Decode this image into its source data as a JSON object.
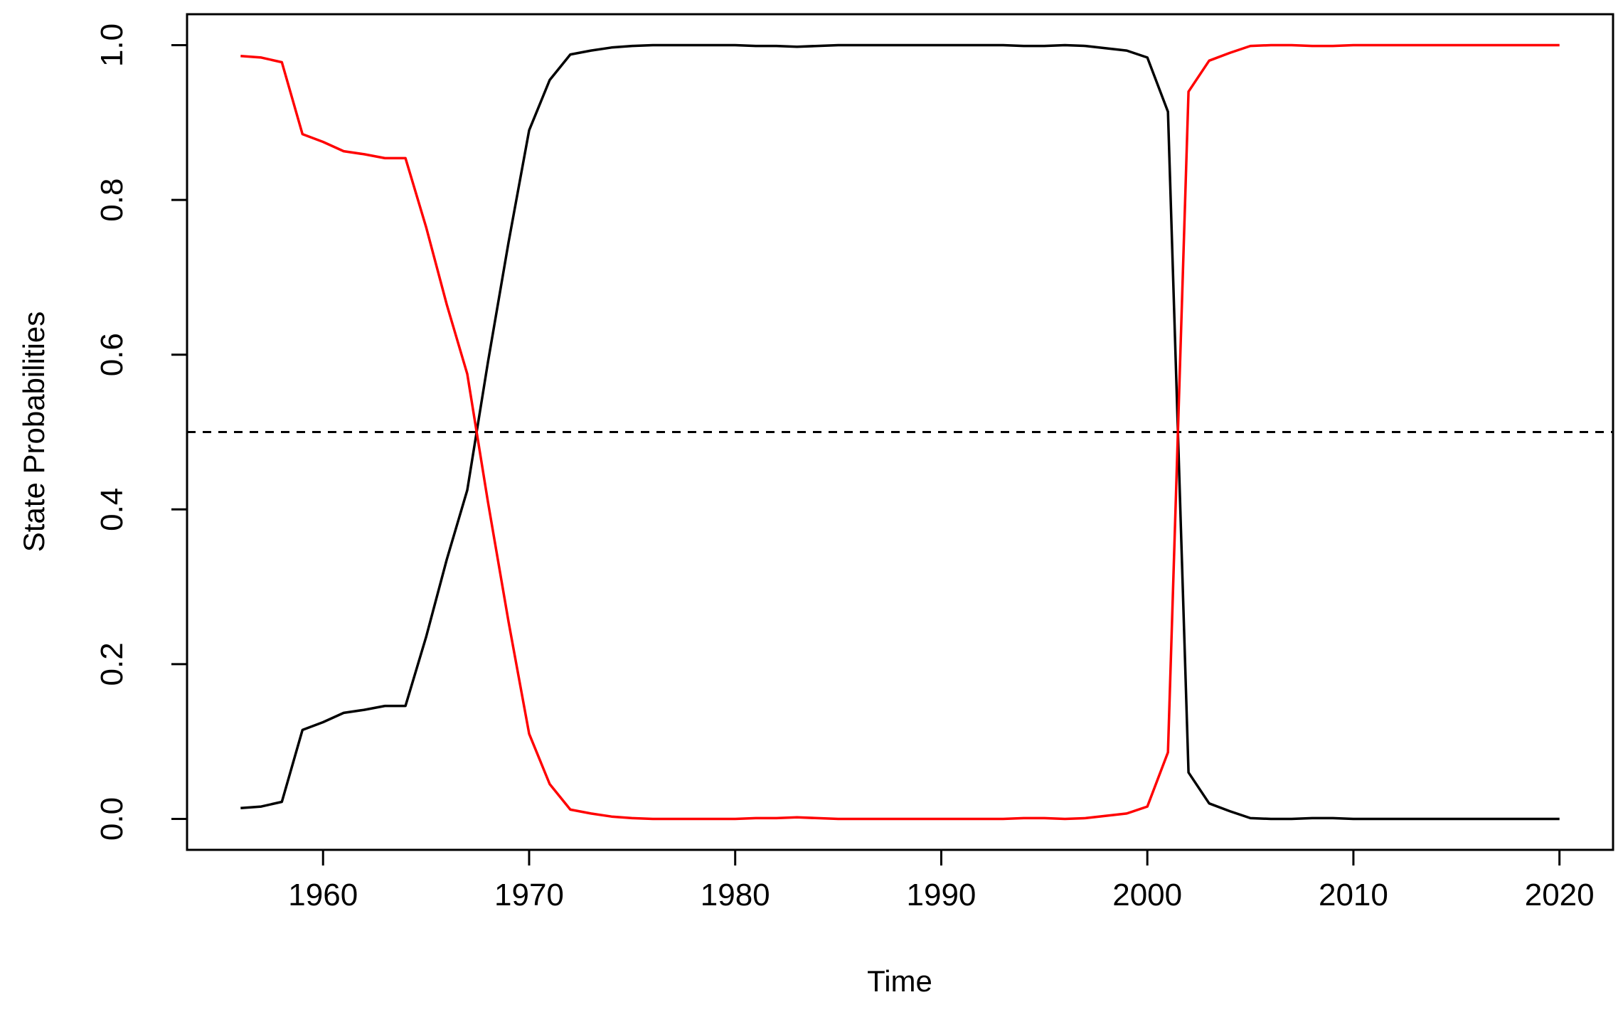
{
  "chart_data": {
    "type": "line",
    "title": "",
    "xlabel": "Time",
    "ylabel": "State Probabilities",
    "xlim": [
      1953.4,
      2022.6
    ],
    "ylim": [
      -0.04,
      1.04
    ],
    "xticks": [
      1960,
      1970,
      1980,
      1990,
      2000,
      2010,
      2020
    ],
    "yticks": [
      0.0,
      0.2,
      0.4,
      0.6,
      0.8,
      1.0
    ],
    "xtick_labels": [
      "1960",
      "1970",
      "1980",
      "1990",
      "2000",
      "2010",
      "2020"
    ],
    "ytick_labels": [
      "0.0",
      "0.2",
      "0.4",
      "0.6",
      "0.8",
      "1.0"
    ],
    "grid": false,
    "reference_line": {
      "y": 0.5,
      "style": "dashed",
      "color": "#000000"
    },
    "x": [
      1956,
      1957,
      1958,
      1959,
      1960,
      1961,
      1962,
      1963,
      1964,
      1965,
      1966,
      1967,
      1968,
      1969,
      1970,
      1971,
      1972,
      1973,
      1974,
      1975,
      1976,
      1977,
      1978,
      1979,
      1980,
      1981,
      1982,
      1983,
      1984,
      1985,
      1986,
      1987,
      1988,
      1989,
      1990,
      1991,
      1992,
      1993,
      1994,
      1995,
      1996,
      1997,
      1998,
      1999,
      2000,
      2001,
      2002,
      2003,
      2004,
      2005,
      2006,
      2007,
      2008,
      2009,
      2010,
      2011,
      2012,
      2013,
      2014,
      2015,
      2016,
      2017,
      2018,
      2019,
      2020
    ],
    "series": [
      {
        "color": "#000000",
        "values": [
          0.014,
          0.016,
          0.022,
          0.115,
          0.125,
          0.137,
          0.141,
          0.146,
          0.146,
          0.235,
          0.335,
          0.425,
          0.59,
          0.745,
          0.89,
          0.955,
          0.988,
          0.993,
          0.997,
          0.999,
          1.0,
          1.0,
          1.0,
          1.0,
          1.0,
          0.999,
          0.999,
          0.998,
          0.999,
          1.0,
          1.0,
          1.0,
          1.0,
          1.0,
          1.0,
          1.0,
          1.0,
          1.0,
          0.999,
          0.999,
          1.0,
          0.999,
          0.996,
          0.993,
          0.984,
          0.914,
          0.06,
          0.02,
          0.01,
          0.001,
          0.0,
          0.0,
          0.001,
          0.001,
          0.0,
          0.0,
          0.0,
          0.0,
          0.0,
          0.0,
          0.0,
          0.0,
          0.0,
          0.0,
          0.0
        ]
      },
      {
        "color": "#ff0000",
        "values": [
          0.986,
          0.984,
          0.978,
          0.885,
          0.875,
          0.863,
          0.859,
          0.854,
          0.854,
          0.765,
          0.665,
          0.575,
          0.41,
          0.255,
          0.11,
          0.045,
          0.012,
          0.007,
          0.003,
          0.001,
          0.0,
          0.0,
          0.0,
          0.0,
          0.0,
          0.001,
          0.001,
          0.002,
          0.001,
          0.0,
          0.0,
          0.0,
          0.0,
          0.0,
          0.0,
          0.0,
          0.0,
          0.0,
          0.001,
          0.001,
          0.0,
          0.001,
          0.004,
          0.007,
          0.016,
          0.086,
          0.94,
          0.98,
          0.99,
          0.999,
          1.0,
          1.0,
          0.999,
          0.999,
          1.0,
          1.0,
          1.0,
          1.0,
          1.0,
          1.0,
          1.0,
          1.0,
          1.0,
          1.0,
          1.0
        ]
      }
    ]
  }
}
